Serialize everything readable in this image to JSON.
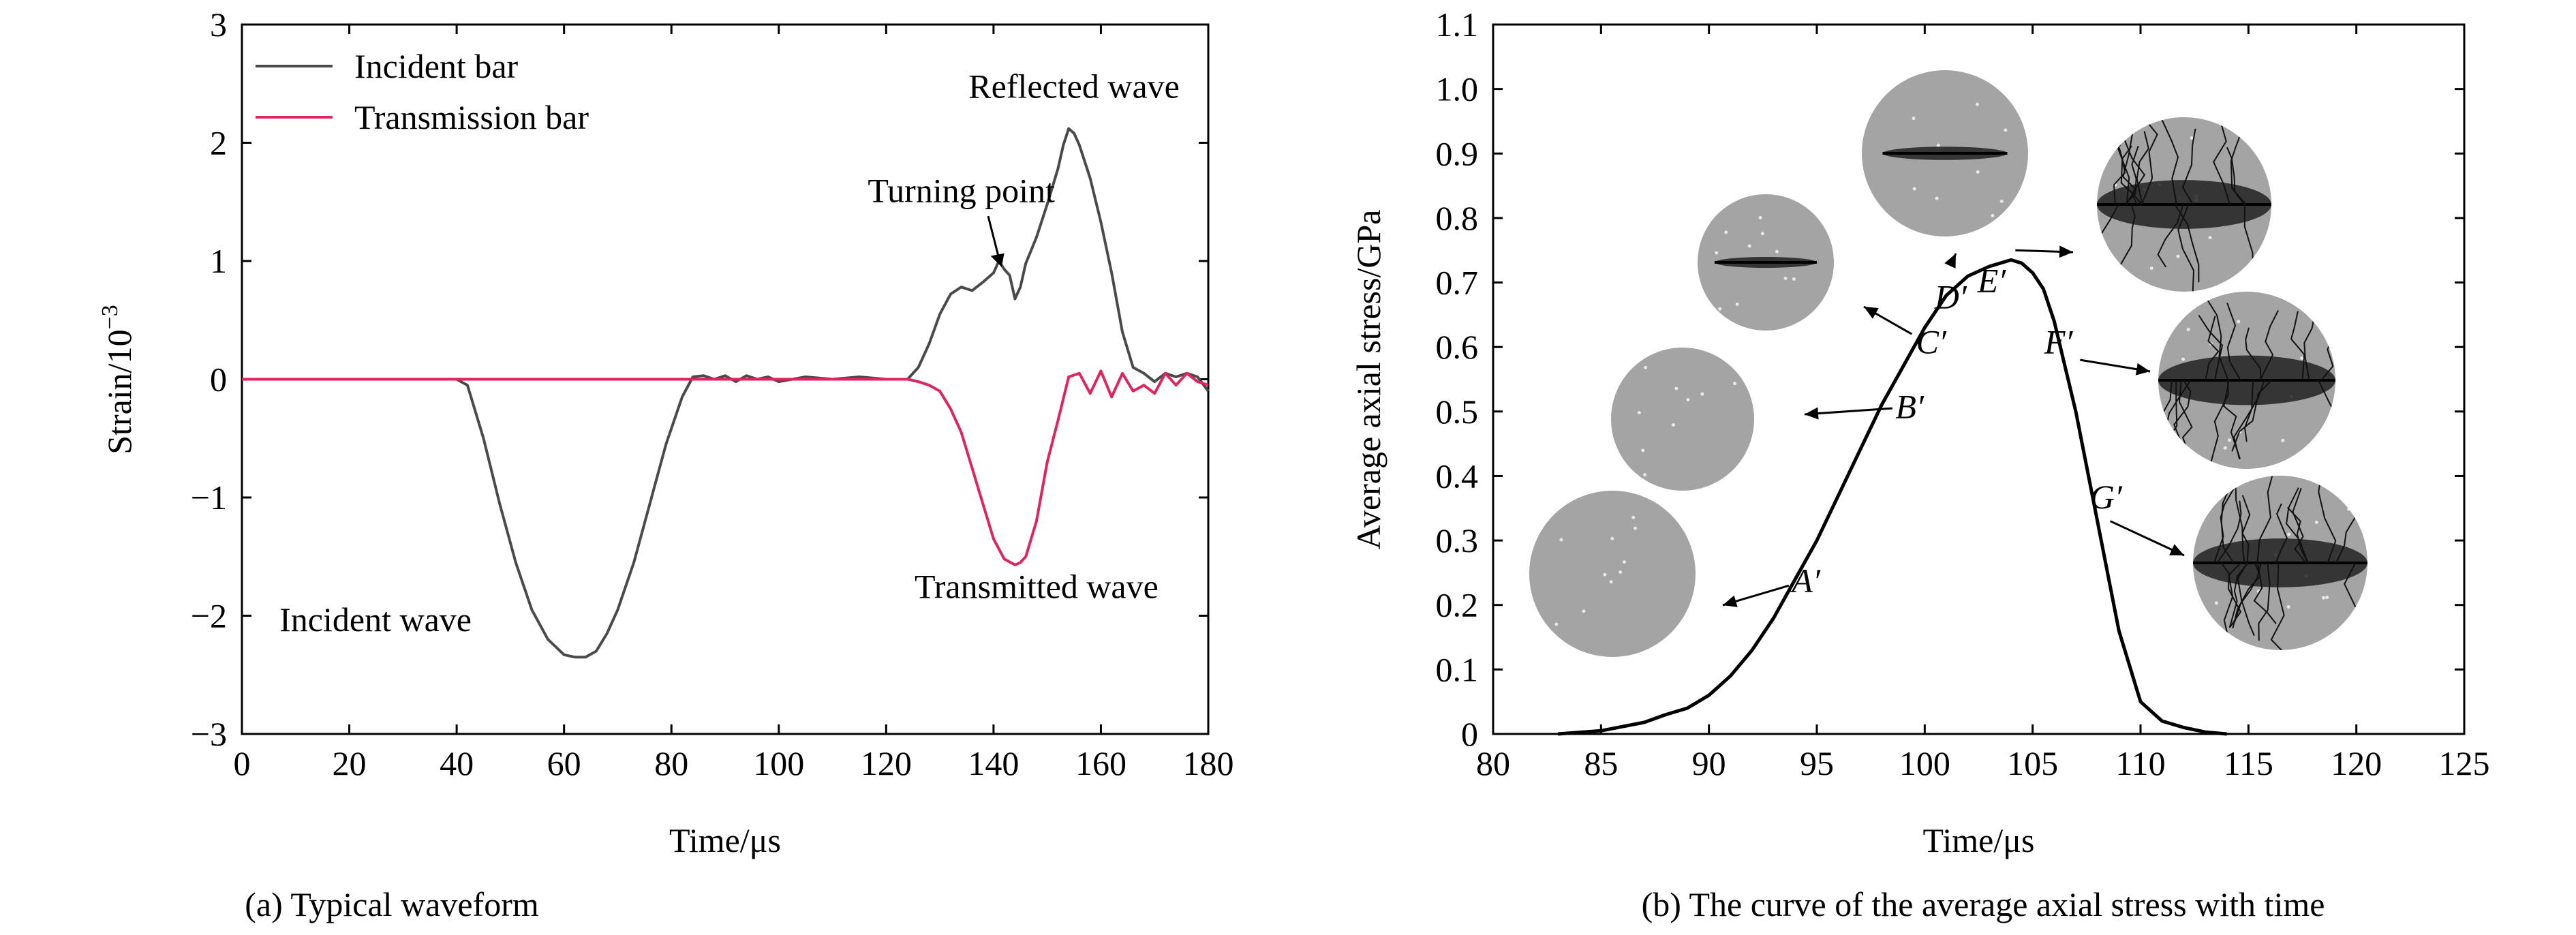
{
  "chart_data": [
    {
      "type": "line",
      "caption": "(a) Typical waveform",
      "xlabel": "Time/μs",
      "ylabel": "Strain/10",
      "ylabel_exponent": "−3",
      "xlim": [
        0,
        180
      ],
      "ylim": [
        -3,
        3
      ],
      "xticks": [
        "0",
        "20",
        "40",
        "60",
        "80",
        "100",
        "120",
        "140",
        "160",
        "180"
      ],
      "yticks": [
        "−3",
        "−2",
        "−1",
        "0",
        "1",
        "2",
        "3"
      ],
      "grid": false,
      "legend_position": "top-left",
      "series": [
        {
          "name": "Incident bar",
          "color": "#4a4a4a",
          "x": [
            0,
            40,
            42,
            45,
            48,
            51,
            54,
            57,
            60,
            62,
            64,
            66,
            68,
            70,
            73,
            76,
            79,
            82,
            84,
            86,
            88,
            90,
            92,
            94,
            96,
            98,
            100,
            105,
            110,
            115,
            120,
            124,
            126,
            128,
            130,
            132,
            134,
            136,
            138,
            140,
            141,
            142,
            143,
            144,
            145,
            146,
            148,
            150,
            152,
            153,
            154,
            155,
            156,
            158,
            160,
            162,
            164,
            166,
            168,
            170,
            172,
            174,
            176,
            178,
            180
          ],
          "y": [
            0,
            0,
            -0.05,
            -0.5,
            -1.05,
            -1.55,
            -1.95,
            -2.2,
            -2.33,
            -2.35,
            -2.35,
            -2.3,
            -2.15,
            -1.95,
            -1.55,
            -1.05,
            -0.55,
            -0.15,
            0.02,
            0.03,
            0,
            0.03,
            -0.02,
            0.03,
            0,
            0.02,
            -0.02,
            0.02,
            0,
            0.02,
            0,
            0,
            0.1,
            0.3,
            0.55,
            0.72,
            0.78,
            0.75,
            0.82,
            0.9,
            1.0,
            0.93,
            0.88,
            0.68,
            0.78,
            0.98,
            1.2,
            1.48,
            1.78,
            1.98,
            2.12,
            2.08,
            1.98,
            1.7,
            1.33,
            0.9,
            0.4,
            0.1,
            0.05,
            -0.02,
            0.05,
            0.02,
            0.05,
            0.02,
            -0.1
          ]
        },
        {
          "name": "Transmission bar",
          "color": "#e0245e",
          "x": [
            0,
            124,
            126,
            128,
            130,
            132,
            134,
            136,
            138,
            140,
            142,
            144,
            145,
            146,
            148,
            150,
            152,
            154,
            156,
            158,
            160,
            162,
            164,
            166,
            168,
            170,
            172,
            174,
            176,
            178,
            180
          ],
          "y": [
            0,
            0,
            -0.02,
            -0.05,
            -0.1,
            -0.25,
            -0.45,
            -0.75,
            -1.05,
            -1.35,
            -1.52,
            -1.57,
            -1.55,
            -1.5,
            -1.2,
            -0.7,
            -0.35,
            0.02,
            0.05,
            -0.12,
            0.07,
            -0.15,
            0.05,
            -0.1,
            -0.05,
            -0.12,
            0.05,
            -0.05,
            0.05,
            -0.02,
            -0.05
          ]
        }
      ],
      "annotations": [
        {
          "text": "Reflected wave",
          "x": 155,
          "y": 2.38
        },
        {
          "text": "Turning point",
          "x": 134,
          "y": 1.5
        },
        {
          "text": "Incident wave",
          "x": 7,
          "y": -2.13
        },
        {
          "text": "Transmitted wave",
          "x": 148,
          "y": -1.85
        }
      ]
    },
    {
      "type": "line",
      "caption": "(b) The curve of the average axial stress with time",
      "xlabel": "Time/μs",
      "ylabel": "Average axial stress/GPa",
      "xlim": [
        80,
        125
      ],
      "ylim": [
        0,
        1.1
      ],
      "xticks": [
        "80",
        "85",
        "90",
        "95",
        "100",
        "105",
        "110",
        "115",
        "120",
        "125"
      ],
      "yticks": [
        "0",
        "0.1",
        "0.2",
        "0.3",
        "0.4",
        "0.5",
        "0.6",
        "0.7",
        "0.8",
        "0.9",
        "1.0",
        "1.1"
      ],
      "grid": false,
      "series": [
        {
          "name": "",
          "color": "#000000",
          "x": [
            83,
            85,
            87,
            88,
            89,
            90,
            91,
            92,
            93,
            94,
            95,
            96,
            97,
            98,
            99,
            100,
            101,
            102,
            103,
            104,
            104.5,
            105,
            105.5,
            106,
            107,
            108,
            109,
            110,
            111,
            112,
            113,
            114
          ],
          "y": [
            0,
            0.005,
            0.018,
            0.03,
            0.04,
            0.06,
            0.09,
            0.13,
            0.18,
            0.24,
            0.3,
            0.37,
            0.44,
            0.51,
            0.57,
            0.63,
            0.68,
            0.71,
            0.725,
            0.735,
            0.73,
            0.715,
            0.69,
            0.64,
            0.5,
            0.33,
            0.16,
            0.05,
            0.02,
            0.01,
            0.003,
            0
          ]
        }
      ],
      "point_labels": [
        {
          "text": "A′",
          "x": 94.5,
          "y": 0.22
        },
        {
          "text": "B′",
          "x": 99.3,
          "y": 0.49
        },
        {
          "text": "C′",
          "x": 100.3,
          "y": 0.59
        },
        {
          "text": "D′",
          "x": 101.2,
          "y": 0.66
        },
        {
          "text": "E′",
          "x": 103.1,
          "y": 0.685
        },
        {
          "text": "F′",
          "x": 106.2,
          "y": 0.59
        },
        {
          "text": "G′",
          "x": 108.4,
          "y": 0.35
        }
      ],
      "specimens": [
        {
          "label": "A′",
          "shade": 0.2
        },
        {
          "label": "B′",
          "shade": 0.25
        },
        {
          "label": "C′",
          "shade": 0.6
        },
        {
          "label": "D′",
          "shade": 0.7
        },
        {
          "label": "E′",
          "shade": 0.85
        },
        {
          "label": "F′",
          "shade": 0.9
        },
        {
          "label": "G′",
          "shade": 1.0
        }
      ]
    }
  ]
}
